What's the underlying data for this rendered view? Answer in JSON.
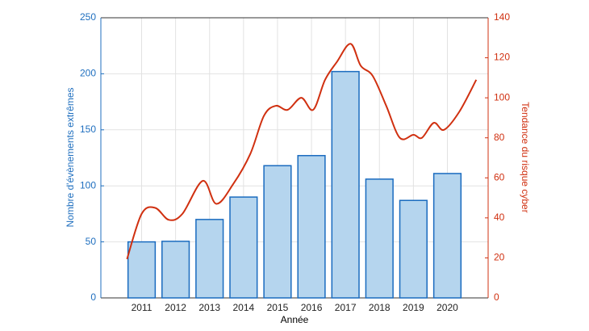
{
  "chart_data": {
    "type": "bar",
    "x_label": "Année",
    "y_label": "Nombre d'évènements extrêmes",
    "y2_label": "Tendance du risque cyber",
    "x": [
      2011,
      2012,
      2013,
      2014,
      2015,
      2016,
      2017,
      2018,
      2019,
      2020
    ],
    "xlim": [
      2009.8,
      2021.2
    ],
    "ylim": [
      0,
      250
    ],
    "yticks": [
      0,
      50,
      100,
      150,
      200,
      250
    ],
    "y2lim": [
      0,
      140
    ],
    "y2ticks": [
      0,
      20,
      40,
      60,
      80,
      100,
      120,
      140
    ],
    "grid": true,
    "y_color": "#1f6fbf",
    "y2_color": "#d03010",
    "series": [
      {
        "type": "bar",
        "color": "#b5d5ee",
        "edge_color": "#1a6bbf",
        "values": [
          50,
          50.5,
          70,
          90,
          118,
          127,
          202,
          106,
          87,
          111
        ]
      },
      {
        "type": "line",
        "axis": "y2",
        "color": "#d03010",
        "x": [
          2010.57,
          2011,
          2011.4,
          2011.8,
          2012.2,
          2012.8,
          2013.2,
          2013.7,
          2014.2,
          2014.6,
          2014.95,
          2015.3,
          2015.7,
          2016.05,
          2016.4,
          2016.75,
          2017.15,
          2017.45,
          2017.8,
          2018.2,
          2018.6,
          2019,
          2019.25,
          2019.6,
          2019.9,
          2020.35,
          2020.85
        ],
        "values": [
          19.4,
          42,
          45,
          39,
          42,
          58.5,
          47,
          57,
          72,
          91,
          96,
          94,
          100,
          94,
          109,
          118,
          127,
          116,
          111,
          96,
          80,
          81.5,
          80,
          87.5,
          84,
          93,
          109
        ]
      }
    ]
  }
}
